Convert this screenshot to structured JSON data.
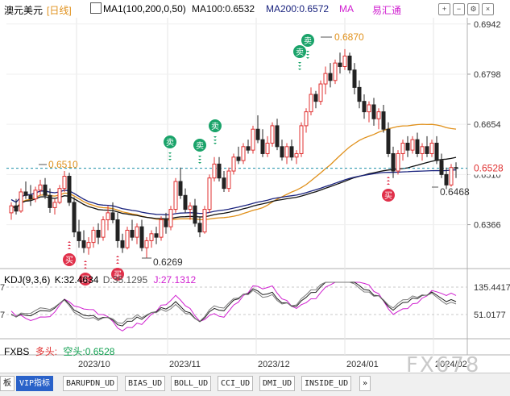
{
  "header": {
    "symbol": "澳元美元",
    "period": "[日线]",
    "ma_label": "MA1(100,200,0,50)",
    "ma100": "MA100:0.6532",
    "ma200": "MA200:0.6572",
    "ma": "MA",
    "source": "易汇通"
  },
  "kdj": {
    "label": "KDJ(9,3,6)",
    "k": "K:32.4634",
    "d": "D:35.1295",
    "j": "J:27.1312"
  },
  "fxbs": {
    "label": "FXBS",
    "long": "多头:",
    "short": "空头:0.6528"
  },
  "tabs": [
    "VIP指标",
    "BARUPDN_UD",
    "BIAS_UD",
    "BOLL_UD",
    "CCI_UD",
    "DMI_UD",
    "INSIDE_UD"
  ],
  "tab_prefix": "板",
  "tab_scroll": "»",
  "watermark": "FX678",
  "colors": {
    "up": "#e03030",
    "down": "#10a050",
    "ma100": "#111111",
    "ma200": "#e0901a",
    "ma_blue": "#1a237e",
    "k": "#222222",
    "d": "#7a7a7a",
    "j": "#d020d0"
  },
  "chart_data": {
    "type": "candlestick",
    "price_axis": [
      "0.6942",
      "0.6798",
      "0.6654",
      "0.6510",
      "0.6366"
    ],
    "current_price": "0.6528",
    "kdj_axis": [
      "135.4417",
      "51.0177"
    ],
    "kdj_axis_left": [
      "7",
      "7"
    ],
    "x_labels": [
      "2023/10",
      "2023/11",
      "2023/12",
      "2024/01",
      "2024/02"
    ],
    "annotations": {
      "high": "0.6870",
      "level": "0.6510",
      "low1": "0.6269",
      "low2": "0.6468"
    },
    "signals": {
      "buy": "买",
      "sell": "卖"
    },
    "candles": [
      [
        0.64,
        0.643,
        0.638,
        0.642
      ],
      [
        0.642,
        0.644,
        0.6395,
        0.6405
      ],
      [
        0.6405,
        0.647,
        0.64,
        0.646
      ],
      [
        0.646,
        0.649,
        0.644,
        0.645
      ],
      [
        0.645,
        0.648,
        0.642,
        0.644
      ],
      [
        0.644,
        0.6475,
        0.643,
        0.6465
      ],
      [
        0.6465,
        0.6495,
        0.645,
        0.648
      ],
      [
        0.648,
        0.65,
        0.644,
        0.645
      ],
      [
        0.645,
        0.647,
        0.64,
        0.6415
      ],
      [
        0.6415,
        0.644,
        0.6395,
        0.643
      ],
      [
        0.643,
        0.648,
        0.6425,
        0.647
      ],
      [
        0.647,
        0.652,
        0.646,
        0.6505
      ],
      [
        0.6505,
        0.6515,
        0.642,
        0.643
      ],
      [
        0.643,
        0.6445,
        0.633,
        0.6345
      ],
      [
        0.6345,
        0.638,
        0.63,
        0.632
      ],
      [
        0.632,
        0.635,
        0.6285,
        0.63
      ],
      [
        0.63,
        0.633,
        0.628,
        0.6315
      ],
      [
        0.6315,
        0.636,
        0.63,
        0.635
      ],
      [
        0.635,
        0.637,
        0.631,
        0.633
      ],
      [
        0.633,
        0.639,
        0.632,
        0.638
      ],
      [
        0.638,
        0.642,
        0.635,
        0.64
      ],
      [
        0.64,
        0.643,
        0.637,
        0.638
      ],
      [
        0.638,
        0.64,
        0.63,
        0.632
      ],
      [
        0.632,
        0.634,
        0.6285,
        0.63
      ],
      [
        0.63,
        0.636,
        0.6295,
        0.635
      ],
      [
        0.635,
        0.638,
        0.632,
        0.633
      ],
      [
        0.633,
        0.637,
        0.631,
        0.636
      ],
      [
        0.636,
        0.638,
        0.629,
        0.63
      ],
      [
        0.63,
        0.633,
        0.6269,
        0.632
      ],
      [
        0.632,
        0.635,
        0.63,
        0.634
      ],
      [
        0.634,
        0.636,
        0.631,
        0.633
      ],
      [
        0.633,
        0.639,
        0.632,
        0.638
      ],
      [
        0.638,
        0.64,
        0.634,
        0.636
      ],
      [
        0.636,
        0.642,
        0.635,
        0.641
      ],
      [
        0.641,
        0.65,
        0.64,
        0.649
      ],
      [
        0.649,
        0.653,
        0.644,
        0.645
      ],
      [
        0.645,
        0.647,
        0.64,
        0.641
      ],
      [
        0.641,
        0.643,
        0.638,
        0.642
      ],
      [
        0.642,
        0.644,
        0.636,
        0.637
      ],
      [
        0.637,
        0.639,
        0.633,
        0.6345
      ],
      [
        0.6345,
        0.642,
        0.634,
        0.641
      ],
      [
        0.641,
        0.651,
        0.64,
        0.65
      ],
      [
        0.65,
        0.656,
        0.649,
        0.654
      ],
      [
        0.654,
        0.656,
        0.649,
        0.65
      ],
      [
        0.65,
        0.652,
        0.646,
        0.647
      ],
      [
        0.647,
        0.653,
        0.646,
        0.652
      ],
      [
        0.652,
        0.657,
        0.651,
        0.656
      ],
      [
        0.656,
        0.659,
        0.654,
        0.655
      ],
      [
        0.655,
        0.66,
        0.654,
        0.659
      ],
      [
        0.659,
        0.661,
        0.657,
        0.658
      ],
      [
        0.658,
        0.665,
        0.657,
        0.664
      ],
      [
        0.664,
        0.668,
        0.66,
        0.661
      ],
      [
        0.661,
        0.664,
        0.656,
        0.657
      ],
      [
        0.657,
        0.662,
        0.656,
        0.66
      ],
      [
        0.66,
        0.666,
        0.659,
        0.665
      ],
      [
        0.665,
        0.667,
        0.658,
        0.659
      ],
      [
        0.659,
        0.661,
        0.655,
        0.656
      ],
      [
        0.656,
        0.66,
        0.654,
        0.659
      ],
      [
        0.659,
        0.661,
        0.655,
        0.656
      ],
      [
        0.656,
        0.658,
        0.654,
        0.657
      ],
      [
        0.657,
        0.666,
        0.656,
        0.665
      ],
      [
        0.665,
        0.67,
        0.663,
        0.669
      ],
      [
        0.669,
        0.676,
        0.668,
        0.674
      ],
      [
        0.674,
        0.675,
        0.67,
        0.672
      ],
      [
        0.672,
        0.678,
        0.671,
        0.677
      ],
      [
        0.677,
        0.682,
        0.674,
        0.68
      ],
      [
        0.68,
        0.683,
        0.676,
        0.678
      ],
      [
        0.678,
        0.684,
        0.677,
        0.683
      ],
      [
        0.683,
        0.686,
        0.68,
        0.682
      ],
      [
        0.682,
        0.687,
        0.681,
        0.685
      ],
      [
        0.685,
        0.686,
        0.68,
        0.681
      ],
      [
        0.681,
        0.683,
        0.674,
        0.676
      ],
      [
        0.676,
        0.678,
        0.67,
        0.672
      ],
      [
        0.672,
        0.674,
        0.667,
        0.669
      ],
      [
        0.669,
        0.672,
        0.666,
        0.671
      ],
      [
        0.671,
        0.673,
        0.665,
        0.667
      ],
      [
        0.667,
        0.67,
        0.664,
        0.669
      ],
      [
        0.669,
        0.671,
        0.663,
        0.664
      ],
      [
        0.664,
        0.666,
        0.656,
        0.657
      ],
      [
        0.657,
        0.659,
        0.65,
        0.652
      ],
      [
        0.652,
        0.658,
        0.651,
        0.657
      ],
      [
        0.657,
        0.661,
        0.655,
        0.66
      ],
      [
        0.66,
        0.662,
        0.656,
        0.658
      ],
      [
        0.658,
        0.662,
        0.657,
        0.661
      ],
      [
        0.661,
        0.663,
        0.656,
        0.657
      ],
      [
        0.657,
        0.66,
        0.655,
        0.659
      ],
      [
        0.659,
        0.662,
        0.656,
        0.657
      ],
      [
        0.657,
        0.661,
        0.656,
        0.66
      ],
      [
        0.66,
        0.662,
        0.654,
        0.655
      ],
      [
        0.655,
        0.657,
        0.65,
        0.651
      ],
      [
        0.651,
        0.653,
        0.6468,
        0.648
      ],
      [
        0.648,
        0.654,
        0.6475,
        0.653
      ],
      [
        0.653,
        0.6545,
        0.65,
        0.6528
      ]
    ]
  }
}
